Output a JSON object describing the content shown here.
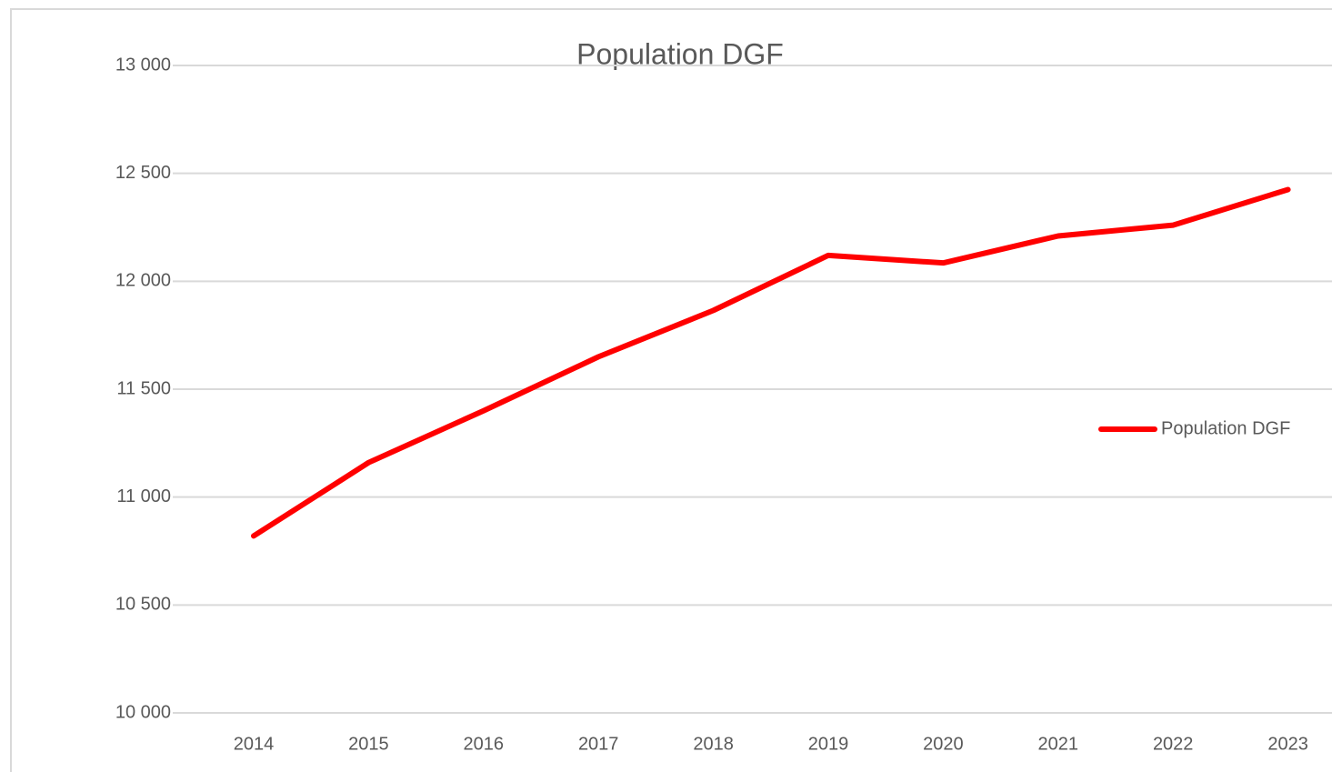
{
  "chart_data": {
    "type": "line",
    "title": "Population DGF",
    "categories": [
      "2014",
      "2015",
      "2016",
      "2017",
      "2018",
      "2019",
      "2020",
      "2021",
      "2022",
      "2023"
    ],
    "series": [
      {
        "name": "Population DGF",
        "color": "#ff0000",
        "values": [
          10820,
          11160,
          11400,
          11650,
          11865,
          12120,
          12085,
          12210,
          12260,
          12425
        ]
      }
    ],
    "ylim": [
      10000,
      13000
    ],
    "yticks": [
      {
        "value": 10000,
        "label": "10 000"
      },
      {
        "value": 10500,
        "label": "10 500"
      },
      {
        "value": 11000,
        "label": "11 000"
      },
      {
        "value": 11500,
        "label": "11 500"
      },
      {
        "value": 12000,
        "label": "12 000"
      },
      {
        "value": 12500,
        "label": "12 500"
      },
      {
        "value": 13000,
        "label": "13 000"
      }
    ],
    "grid": true,
    "legend": "right"
  }
}
